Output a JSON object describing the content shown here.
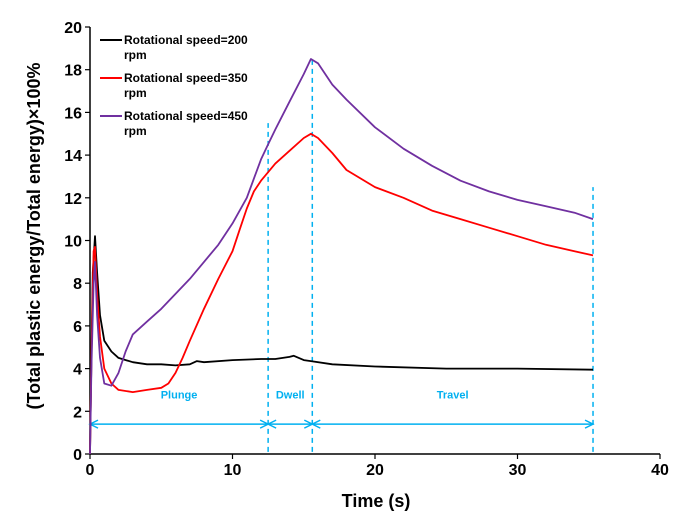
{
  "chart_data": {
    "type": "line",
    "title": "",
    "xlabel": "Time (s)",
    "ylabel": "(Total plastic energy/Total energy)×100%",
    "xlim": [
      0,
      40
    ],
    "ylim": [
      0,
      20
    ],
    "xticks": [
      "0",
      "10",
      "20",
      "30",
      "40"
    ],
    "yticks": [
      "0",
      "2",
      "4",
      "6",
      "8",
      "10",
      "12",
      "14",
      "16",
      "18",
      "20"
    ],
    "grid": false,
    "legend": "top-left",
    "series": [
      {
        "name": "Rotational speed=200 rpm",
        "color": "#000000",
        "points": [
          [
            0,
            0
          ],
          [
            0.1,
            4.5
          ],
          [
            0.2,
            8.5
          ],
          [
            0.35,
            10.2
          ],
          [
            0.5,
            8.5
          ],
          [
            0.7,
            6.5
          ],
          [
            1,
            5.3
          ],
          [
            1.5,
            4.8
          ],
          [
            2,
            4.5
          ],
          [
            3,
            4.3
          ],
          [
            4,
            4.2
          ],
          [
            5,
            4.2
          ],
          [
            6,
            4.15
          ],
          [
            7,
            4.2
          ],
          [
            7.5,
            4.35
          ],
          [
            8,
            4.3
          ],
          [
            10,
            4.4
          ],
          [
            12,
            4.45
          ],
          [
            13,
            4.45
          ],
          [
            14,
            4.55
          ],
          [
            14.3,
            4.6
          ],
          [
            15,
            4.4
          ],
          [
            15.5,
            4.35
          ],
          [
            17,
            4.2
          ],
          [
            20,
            4.1
          ],
          [
            25,
            4.0
          ],
          [
            30,
            4.0
          ],
          [
            35.3,
            3.95
          ]
        ]
      },
      {
        "name": "Rotational speed=350 rpm",
        "color": "#ff0000",
        "points": [
          [
            0,
            0
          ],
          [
            0.1,
            4.5
          ],
          [
            0.25,
            9.5
          ],
          [
            0.35,
            9.7
          ],
          [
            0.5,
            7.5
          ],
          [
            0.7,
            5.5
          ],
          [
            1,
            4.0
          ],
          [
            1.5,
            3.3
          ],
          [
            2,
            3.0
          ],
          [
            3,
            2.9
          ],
          [
            4,
            3.0
          ],
          [
            5,
            3.1
          ],
          [
            5.5,
            3.3
          ],
          [
            6,
            3.8
          ],
          [
            6.5,
            4.5
          ],
          [
            7,
            5.3
          ],
          [
            8,
            6.8
          ],
          [
            9,
            8.2
          ],
          [
            10,
            9.5
          ],
          [
            10.5,
            10.5
          ],
          [
            11,
            11.5
          ],
          [
            11.5,
            12.3
          ],
          [
            12,
            12.8
          ],
          [
            13,
            13.6
          ],
          [
            14,
            14.2
          ],
          [
            15,
            14.8
          ],
          [
            15.5,
            15.0
          ],
          [
            16,
            14.8
          ],
          [
            17,
            14.1
          ],
          [
            18,
            13.3
          ],
          [
            20,
            12.5
          ],
          [
            22,
            12.0
          ],
          [
            24,
            11.4
          ],
          [
            26,
            11.0
          ],
          [
            28,
            10.6
          ],
          [
            30,
            10.2
          ],
          [
            32,
            9.8
          ],
          [
            34,
            9.5
          ],
          [
            35.3,
            9.3
          ]
        ]
      },
      {
        "name": "Rotational speed=450 rpm",
        "color": "#7030a0",
        "points": [
          [
            0,
            0
          ],
          [
            0.1,
            4.0
          ],
          [
            0.25,
            8.0
          ],
          [
            0.35,
            9.0
          ],
          [
            0.5,
            6.5
          ],
          [
            0.7,
            4.5
          ],
          [
            1,
            3.3
          ],
          [
            1.5,
            3.2
          ],
          [
            2,
            3.8
          ],
          [
            2.5,
            4.8
          ],
          [
            3,
            5.6
          ],
          [
            4,
            6.2
          ],
          [
            5,
            6.8
          ],
          [
            6,
            7.5
          ],
          [
            7,
            8.2
          ],
          [
            8,
            9.0
          ],
          [
            9,
            9.8
          ],
          [
            10,
            10.8
          ],
          [
            11,
            12.0
          ],
          [
            12,
            13.8
          ],
          [
            12.5,
            14.5
          ],
          [
            13,
            15.2
          ],
          [
            14,
            16.5
          ],
          [
            15,
            17.8
          ],
          [
            15.5,
            18.5
          ],
          [
            16,
            18.3
          ],
          [
            17,
            17.3
          ],
          [
            18,
            16.6
          ],
          [
            20,
            15.3
          ],
          [
            22,
            14.3
          ],
          [
            24,
            13.5
          ],
          [
            26,
            12.8
          ],
          [
            28,
            12.3
          ],
          [
            30,
            11.9
          ],
          [
            32,
            11.6
          ],
          [
            34,
            11.3
          ],
          [
            35.3,
            11.0
          ]
        ]
      }
    ],
    "phase_lines": [
      12.5,
      15.6,
      35.3
    ],
    "phases": [
      {
        "name": "Plunge",
        "from": 0,
        "to": 12.5
      },
      {
        "name": "Dwell",
        "from": 12.5,
        "to": 15.6
      },
      {
        "name": "Travel",
        "from": 15.6,
        "to": 35.3
      }
    ],
    "phase_arrow_y": 1.4,
    "phase_color": "#00b0f0"
  }
}
